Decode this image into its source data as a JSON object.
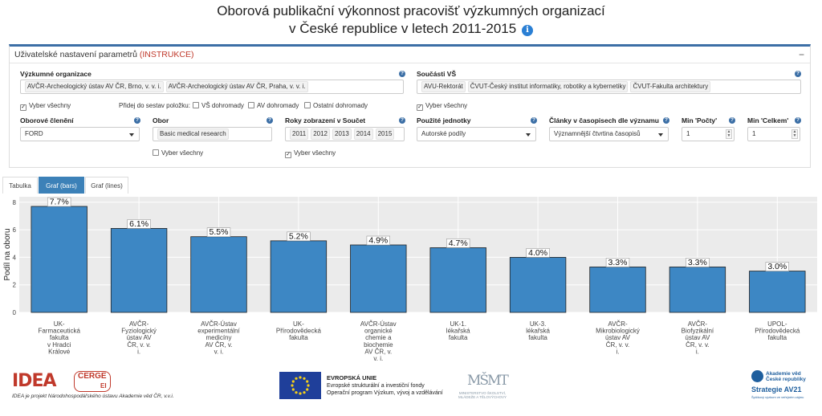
{
  "title_line1": "Oborová publikační výkonnost pracovišť výzkumných organizací",
  "title_line2": "v České republice v letech 2011-2015",
  "panel": {
    "header": "Uživatelské nastavení parametrů",
    "instr": "(INSTRUKCE)",
    "collapse": "−",
    "help": "?",
    "vo_label": "Výzkumné organizace",
    "vo_chips": [
      "AVČR-Archeologický ústav AV ČR, Brno, v. v. i.",
      "AVČR-Archeologický ústav AV ČR, Praha, v. v. i."
    ],
    "sv_label": "Součásti VŠ",
    "sv_chips": [
      "AVU-Rektorát",
      "ČVUT-Český institut informatiky, robotiky a kybernetiky",
      "ČVUT-Fakulta architektury"
    ],
    "select_all": "Vyber všechny",
    "add_label": "Přidej do sestav položku:",
    "add_vs": "VŠ dohromady",
    "add_av": "AV dohromady",
    "add_other": "Ostatní dohromady",
    "obor_cl_label": "Oborové členění",
    "obor_cl_value": "FORD",
    "obor_label": "Obor",
    "obor_value": "Basic medical research",
    "roky_label": "Roky zobrazení v Součet",
    "roky": [
      "2011",
      "2012",
      "2013",
      "2014",
      "2015"
    ],
    "units_label": "Použité jednotky",
    "units_value": "Autorské podíly",
    "clanky_label": "Články v časopisech dle významu",
    "clanky_value": "Významnější čtvrtina časopisů",
    "min_pocty_label": "Min 'Počty'",
    "min_pocty_value": "1",
    "min_celkem_label": "Min 'Celkem'",
    "min_celkem_value": "1"
  },
  "tabs": [
    "Tabulka",
    "Graf (bars)",
    "Graf (lines)"
  ],
  "chart_data": {
    "type": "bar",
    "ylabel": "Podíl na oboru",
    "ylim": [
      0,
      8.4
    ],
    "yticks": [
      0,
      2,
      4,
      6,
      8
    ],
    "grid": true,
    "categories": [
      [
        "UK-",
        "Farmaceutická",
        "fakulta",
        "v Hradci",
        "Králové"
      ],
      [
        "AVČR-",
        "Fyziologický",
        "ústav AV",
        "ČR, v. v.",
        "i."
      ],
      [
        "AVČR-Ústav",
        "experimentální",
        "medicíny",
        "AV ČR, v.",
        "v. i."
      ],
      [
        "UK-",
        "Přírodovědecká",
        "fakulta"
      ],
      [
        "AVČR-Ústav",
        "organické",
        "chemie a",
        "biochemie",
        "AV ČR, v.",
        "v. i."
      ],
      [
        "UK-1.",
        "lékařská",
        "fakulta"
      ],
      [
        "UK-3.",
        "lékařská",
        "fakulta"
      ],
      [
        "AVČR-",
        "Mikrobiologický",
        "ústav AV",
        "ČR, v. v.",
        "i."
      ],
      [
        "AVČR-",
        "Biofyzikální",
        "ústav AV",
        "ČR, v. v.",
        "i."
      ],
      [
        "UPOL-",
        "Přírodovědecká",
        "fakulta"
      ]
    ],
    "values": [
      7.7,
      6.1,
      5.5,
      5.2,
      4.9,
      4.7,
      4.0,
      3.3,
      3.3,
      3.0
    ],
    "labels": [
      "7.7%",
      "6.1%",
      "5.5%",
      "5.2%",
      "4.9%",
      "4.7%",
      "4.0%",
      "3.3%",
      "3.3%",
      "3.0%"
    ],
    "bar_color": "#3d87c4"
  },
  "footer": {
    "idea_logo": "IDEA",
    "cerge": "CERGE",
    "ei": "EI",
    "idea_sub": "IDEA je projekt Národohospodářského ústavu Akademie věd ČR, v.v.i.",
    "eu_line1": "EVROPSKÁ UNIE",
    "eu_line2": "Evropské strukturální a investiční fondy",
    "eu_line3": "Operační program Výzkum, vývoj a vzdělávání",
    "msmt_mark": "MŠMT",
    "msmt_txt": "MINISTERSTVO ŠKOLSTVÍ, MLÁDEŽE A TĚLOVÝCHOVY",
    "av_name1": "Akademie věd",
    "av_name2": "České republiky",
    "av_strategy": "Strategie AV21",
    "av_sub": "Špičkový výzkum ve veřejném zájmu"
  },
  "colors": {
    "accent": "#3c6fa6",
    "bar": "#3d87c4",
    "instr": "#c0392b"
  }
}
